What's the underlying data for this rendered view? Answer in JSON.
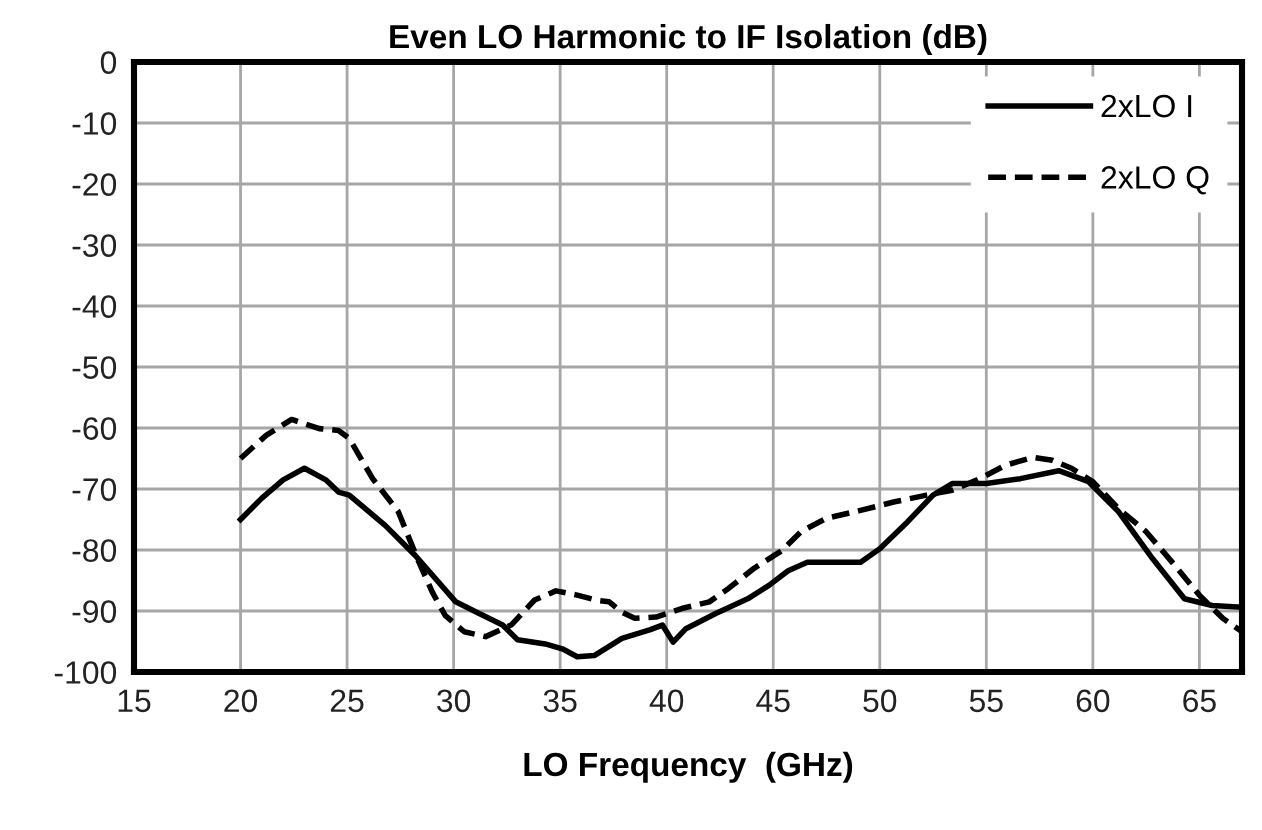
{
  "chart_data": {
    "type": "line",
    "title": "Even LO Harmonic to IF Isolation (dB)",
    "xlabel": "LO Frequency  (GHz)",
    "xlim": [
      15,
      67
    ],
    "xticks": [
      15,
      20,
      25,
      30,
      35,
      40,
      45,
      50,
      55,
      60,
      65
    ],
    "ylim": [
      -100,
      0
    ],
    "yticks": [
      0,
      -10,
      -20,
      -30,
      -40,
      -50,
      -60,
      -70,
      -80,
      -90,
      -100
    ],
    "grid": true,
    "legend": "top right",
    "marker": "none",
    "series": [
      {
        "name": "2xLO I",
        "color": "#000000",
        "line_style": "solid",
        "x": [
          20,
          21,
          22,
          23,
          24,
          24.6,
          25.1,
          26.8,
          28.2,
          29,
          30.1,
          31.2,
          32.3,
          33,
          34.3,
          35.1,
          35.8,
          36.6,
          37.9,
          39.2,
          39.8,
          40.3,
          40.9,
          42.3,
          43.8,
          44.8,
          45.7,
          46.6,
          47.9,
          49.1,
          50,
          51.3,
          52.5,
          53.4,
          55,
          56.6,
          58.4,
          59.8,
          61.2,
          62.8,
          64.3,
          65.6,
          67
        ],
        "values": [
          -75,
          -71.5,
          -68.5,
          -66.6,
          -68.5,
          -70.5,
          -71,
          -76,
          -80.9,
          -84.1,
          -88.5,
          -90.4,
          -92.3,
          -94.7,
          -95.4,
          -96.2,
          -97.5,
          -97.3,
          -94.5,
          -93.1,
          -92.3,
          -95.1,
          -92.9,
          -90.4,
          -88,
          -85.8,
          -83.4,
          -82,
          -82,
          -82,
          -79.8,
          -75.4,
          -71,
          -69.1,
          -69.1,
          -68.3,
          -67,
          -68.8,
          -73.7,
          -81.4,
          -88,
          -89.1,
          -89.4
        ]
      },
      {
        "name": "2xLO Q",
        "color": "#000000",
        "line_style": "dashed",
        "x": [
          20,
          21.2,
          22.4,
          23.7,
          24.6,
          25.1,
          26.2,
          27.4,
          28.3,
          29,
          29.6,
          30.5,
          31.5,
          32.7,
          33.8,
          34.8,
          35.8,
          36.8,
          37.3,
          37.9,
          38.5,
          39.5,
          40.7,
          42,
          42.9,
          44.1,
          45.4,
          46.3,
          47.5,
          49.1,
          50.7,
          52.2,
          53.4,
          54.7,
          55.9,
          57.2,
          58.1,
          59,
          60,
          61.2,
          62.5,
          63.7,
          65,
          66.1,
          67
        ],
        "values": [
          -65,
          -61.2,
          -58.6,
          -60.1,
          -60.4,
          -61.7,
          -68.3,
          -73.7,
          -81.4,
          -86.9,
          -90.7,
          -93.4,
          -94.2,
          -92.3,
          -88.2,
          -86.7,
          -87.4,
          -88.3,
          -88.5,
          -90.2,
          -91.2,
          -91,
          -89.6,
          -88.5,
          -86.3,
          -83,
          -80.1,
          -77,
          -74.8,
          -73.5,
          -72.1,
          -71,
          -70.2,
          -68.3,
          -66.1,
          -64.8,
          -65.3,
          -66.6,
          -68.8,
          -73.2,
          -77,
          -81.9,
          -87.4,
          -91.2,
          -93.4
        ]
      }
    ]
  }
}
